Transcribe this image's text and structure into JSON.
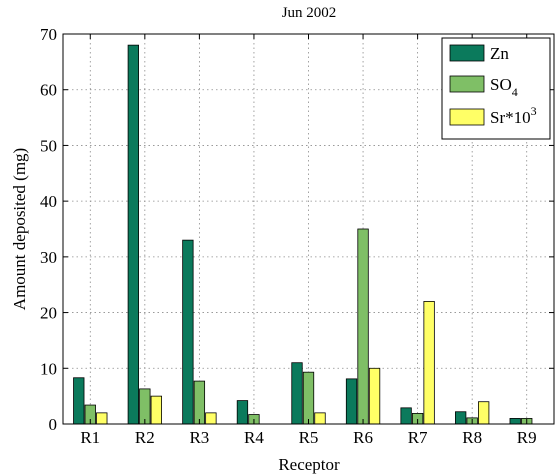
{
  "chart_data": {
    "type": "bar",
    "title": "Jun 2002",
    "xlabel": "Receptor",
    "ylabel": "Amount deposited (mg)",
    "ylim": [
      0,
      70
    ],
    "yticks": [
      0,
      10,
      20,
      30,
      40,
      50,
      60,
      70
    ],
    "grid": true,
    "legend_position": "top-right",
    "categories": [
      "R1",
      "R2",
      "R3",
      "R4",
      "R5",
      "R6",
      "R7",
      "R8",
      "R9"
    ],
    "series": [
      {
        "name": "Zn",
        "color": "#0b7a5c",
        "values": [
          8.3,
          68,
          33,
          4.2,
          11,
          8.1,
          2.9,
          2.2,
          1.0
        ]
      },
      {
        "name": "SO",
        "name_subscript": "4",
        "color": "#7fbf66",
        "values": [
          3.4,
          6.3,
          7.7,
          1.7,
          9.3,
          35,
          1.9,
          1.1,
          1.0
        ]
      },
      {
        "name": "Sr*10",
        "name_superscript": "3",
        "color": "#ffff66",
        "values": [
          2.0,
          5.0,
          2.0,
          0,
          2.0,
          10,
          22,
          4.0,
          0
        ]
      }
    ]
  }
}
